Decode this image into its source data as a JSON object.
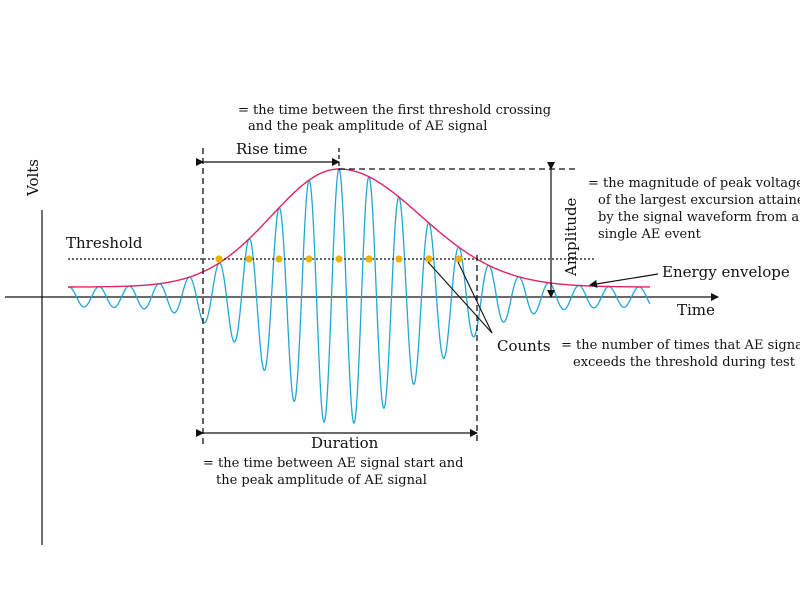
{
  "axes": {
    "y_label": "Volts",
    "x_label": "Time"
  },
  "labels": {
    "threshold": "Threshold",
    "rise_time": "Rise time",
    "rise_time_def_1": "= the time between the first threshold crossing",
    "rise_time_def_2": "and the peak amplitude of AE signal",
    "amplitude": "Amplitude",
    "amplitude_def_1": "= the magnitude of peak voltage",
    "amplitude_def_2": "of the largest excursion attained",
    "amplitude_def_3": "by the signal waveform from a",
    "amplitude_def_4": "single AE event",
    "energy_envelope": "Energy envelope",
    "counts": "Counts",
    "counts_def_1": "= the number of times that AE signal",
    "counts_def_2": "exceeds the threshold during test",
    "duration": "Duration",
    "duration_def_1": "= the time between AE signal start and",
    "duration_def_2": "the peak amplitude of AE signal"
  },
  "colors": {
    "waveform": "#22a7d8",
    "envelope": "#e0245e",
    "count_marker": "#e8b400",
    "ink": "#111111"
  }
}
